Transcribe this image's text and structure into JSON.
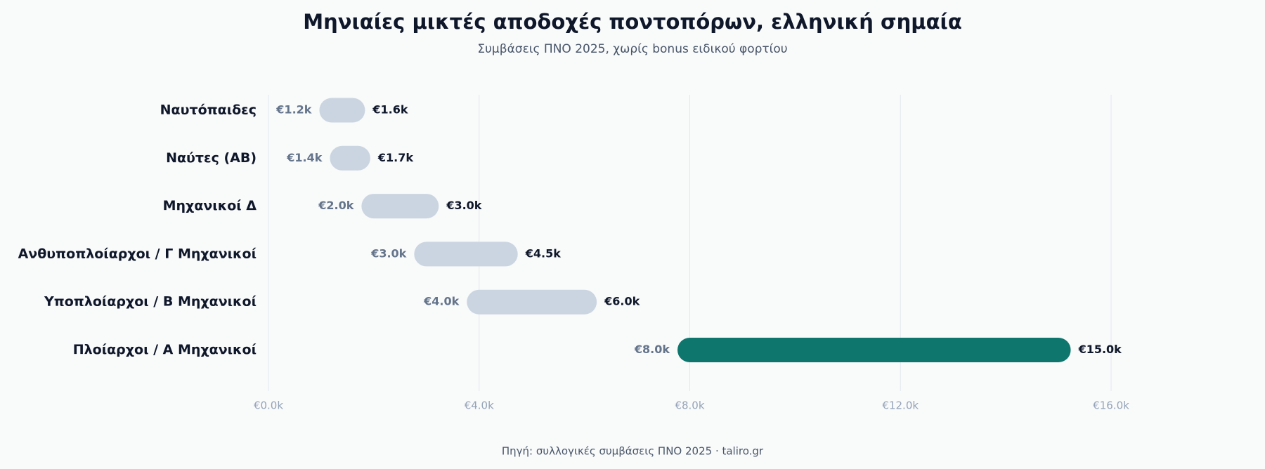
{
  "chart_data": {
    "type": "range_bar",
    "title": "Μηνιαίες μικτές αποδοχές ποντοπόρων, ελληνική σημαία",
    "subtitle": "Συμβάσεις ΠΝΟ 2025, χωρίς bonus ειδικού φορτίου",
    "source": "Πηγή: συλλογικές συμβάσεις ΠΝΟ 2025 · taliro.gr",
    "categories": [
      "Ναυτόπαιδες",
      "Ναύτες (AB)",
      "Μηχανικοί Δ",
      "Ανθυποπλοίαρχοι / Γ Μηχανικοί",
      "Υποπλοίαρχοι / Β Μηχανικοί",
      "Πλοίαρχοι / Α Μηχανικοί"
    ],
    "low": [
      1200,
      1400,
      2000,
      3000,
      4000,
      8000
    ],
    "low_labels": [
      "€1.2k",
      "€1.4k",
      "€2.0k",
      "€3.0k",
      "€4.0k",
      "€8.0k"
    ],
    "high": [
      1600,
      1700,
      3000,
      4500,
      6000,
      15000
    ],
    "high_labels": [
      "€1.6k",
      "€1.7k",
      "€3.0k",
      "€4.5k",
      "€6.0k",
      "€15.0k"
    ],
    "colors": [
      "#cbd5e1",
      "#cbd5e1",
      "#cbd5e1",
      "#cbd5e1",
      "#cbd5e1",
      "#0f766e"
    ],
    "xlim": [
      0,
      16000
    ],
    "xticks": [
      {
        "value": 0,
        "label": "€0.0k"
      },
      {
        "value": 4000,
        "label": "€4.0k"
      },
      {
        "value": 8000,
        "label": "€8.0k"
      },
      {
        "value": 12000,
        "label": "€12.0k"
      },
      {
        "value": 16000,
        "label": "€16.0k"
      }
    ],
    "grid": true
  }
}
